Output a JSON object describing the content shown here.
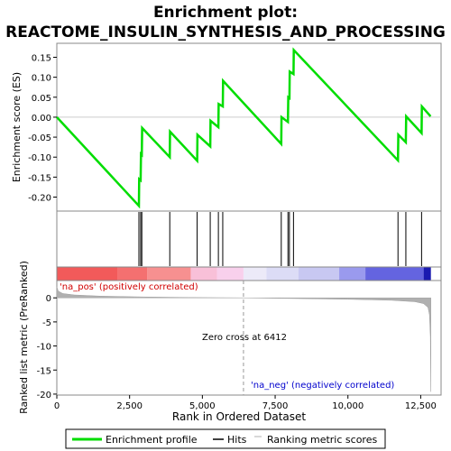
{
  "chart_data": {
    "type": "line",
    "title_line1": "Enrichment plot:",
    "title_line2": "REACTOME_INSULIN_SYNTHESIS_AND_PROCESSING",
    "top_panel": {
      "ylabel": "Enrichment score (ES)",
      "ylim": [
        -0.235,
        0.185
      ],
      "yticks": [
        -0.2,
        -0.15,
        -0.1,
        -0.05,
        0.0,
        0.05,
        0.1,
        0.15
      ],
      "ytick_labels": [
        "-0.20",
        "-0.15",
        "-0.10",
        "-0.05",
        "0.00",
        "0.05",
        "0.10",
        "0.15"
      ],
      "series": [
        {
          "name": "Enrichment profile",
          "color": "#00dd00",
          "x": [
            0,
            2820,
            2830,
            2880,
            2890,
            2920,
            2930,
            3880,
            3890,
            4820,
            4830,
            5270,
            5280,
            5550,
            5560,
            5700,
            5710,
            7710,
            7720,
            7940,
            7950,
            7990,
            8000,
            8130,
            8140,
            11720,
            11730,
            11990,
            12000,
            12530,
            12540,
            12840
          ],
          "y": [
            0.0,
            -0.222,
            -0.155,
            -0.158,
            -0.092,
            -0.094,
            -0.027,
            -0.1,
            -0.036,
            -0.109,
            -0.044,
            -0.073,
            -0.009,
            -0.025,
            0.033,
            0.027,
            0.091,
            -0.067,
            0.0,
            -0.012,
            0.05,
            0.048,
            0.114,
            0.108,
            0.168,
            -0.108,
            -0.044,
            -0.063,
            0.002,
            -0.04,
            0.027,
            0.002
          ]
        }
      ]
    },
    "hits": [
      2820,
      2880,
      2920,
      3880,
      4820,
      5270,
      5550,
      5700,
      7710,
      7940,
      7990,
      8130,
      11720,
      11990,
      12530
    ],
    "color_bar": {
      "segments": [
        {
          "from": 0,
          "to": 2100,
          "color": "#f25a5a"
        },
        {
          "from": 2100,
          "to": 3100,
          "color": "#f47070"
        },
        {
          "from": 3100,
          "to": 4600,
          "color": "#f79090"
        },
        {
          "from": 4600,
          "to": 5500,
          "color": "#f8c0d8"
        },
        {
          "from": 5500,
          "to": 6412,
          "color": "#f8d0ec"
        },
        {
          "from": 6412,
          "to": 7200,
          "color": "#eceaf8"
        },
        {
          "from": 7200,
          "to": 8300,
          "color": "#dcdcf6"
        },
        {
          "from": 8300,
          "to": 9700,
          "color": "#c8c8f2"
        },
        {
          "from": 9700,
          "to": 10600,
          "color": "#9a9aee"
        },
        {
          "from": 10600,
          "to": 12600,
          "color": "#6464e0"
        },
        {
          "from": 12600,
          "to": 12850,
          "color": "#1a1ab0"
        }
      ]
    },
    "bottom_panel": {
      "ylabel": "Ranked list metric (PreRanked)",
      "xlabel": "Rank in Ordered Dataset",
      "ylim": [
        -20.2,
        3.6
      ],
      "yticks": [
        0,
        -5,
        -10,
        -15,
        -20
      ],
      "ytick_labels": [
        "0",
        "-5",
        "-10",
        "-15",
        "-20"
      ],
      "metric_x": [
        0,
        50,
        200,
        600,
        1500,
        3000,
        4500,
        6412,
        8000,
        10000,
        11500,
        12300,
        12600,
        12750,
        12800,
        12830,
        12850
      ],
      "metric_y": [
        2.3,
        1.4,
        0.9,
        0.6,
        0.35,
        0.18,
        0.07,
        0.0,
        -0.12,
        -0.3,
        -0.5,
        -0.8,
        -1.2,
        -2.0,
        -3.5,
        -8.0,
        -19.5
      ],
      "zero_cross_label": "Zero cross at 6412",
      "zero_cross_x": 6412,
      "pos_label": "'na_pos' (positively correlated)",
      "neg_label": "'na_neg' (negatively correlated)"
    },
    "xlim": [
      0,
      13200
    ],
    "xticks": [
      0,
      2500,
      5000,
      7500,
      10000,
      12500
    ],
    "xtick_labels": [
      "0",
      "2,500",
      "5,000",
      "7,500",
      "10,000",
      "12,500"
    ],
    "legend": [
      {
        "label": "Enrichment profile",
        "color": "#00dd00",
        "kind": "line"
      },
      {
        "label": "Hits",
        "color": "#000000",
        "kind": "line"
      },
      {
        "label": "Ranking metric scores",
        "color": "#b0b0b0",
        "kind": "line"
      }
    ]
  }
}
